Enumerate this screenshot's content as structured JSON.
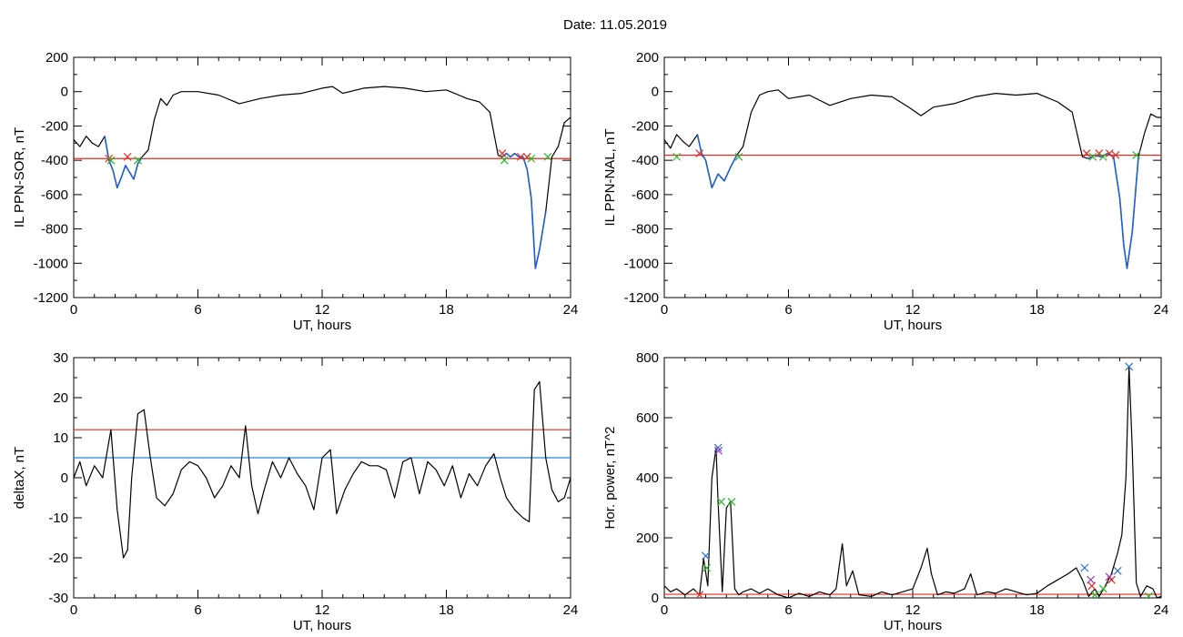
{
  "page": {
    "date_label": "Date:",
    "date_value": "11.05.2019"
  },
  "colors": {
    "background": "#ffffff",
    "axis": "#000000",
    "trace": "#000000",
    "substorm_segment": "#1f5fd0",
    "threshold_red": "#e8291c",
    "threshold_blue": "#1f8bd6",
    "marker_red": "#e8291c",
    "marker_green": "#22bb22",
    "marker_blue": "#2a6fd6",
    "marker_purple": "#9a3cc0"
  },
  "chart_data": [
    {
      "id": "sor",
      "type": "line",
      "title": "",
      "xlabel": "UT, hours",
      "ylabel": "IL PPN-SOR, nT",
      "xlim": [
        0,
        24
      ],
      "ylim": [
        -1200,
        200
      ],
      "xticks": [
        0,
        6,
        12,
        18,
        24
      ],
      "yticks": [
        200,
        0,
        -200,
        -400,
        -600,
        -800,
        -1000,
        -1200
      ],
      "grid": false,
      "hlines": [
        {
          "value": -390,
          "color": "red"
        }
      ],
      "series": [
        {
          "x": [
            0,
            0.3,
            0.6,
            0.9,
            1.2,
            1.5,
            1.7,
            1.9,
            2.1,
            2.3,
            2.5,
            2.7,
            2.9,
            3.1,
            3.3,
            3.6,
            3.9,
            4.2,
            4.5,
            4.8,
            5.2,
            6,
            7,
            8,
            9,
            10,
            11,
            12,
            12.5,
            13,
            14,
            15,
            16,
            17,
            18,
            19,
            19.6,
            20.1,
            20.5,
            20.7,
            20.9,
            21.1,
            21.3,
            21.5,
            21.7,
            21.9,
            22.1,
            22.3,
            22.5,
            22.8,
            23.1,
            23.4,
            23.7,
            24
          ],
          "y": [
            -280,
            -320,
            -260,
            -300,
            -320,
            -260,
            -400,
            -460,
            -560,
            -500,
            -430,
            -470,
            -510,
            -420,
            -380,
            -340,
            -160,
            -40,
            -80,
            -20,
            0,
            0,
            -20,
            -70,
            -40,
            -20,
            -10,
            20,
            30,
            -10,
            20,
            30,
            20,
            0,
            10,
            -40,
            -60,
            -120,
            -370,
            -380,
            -360,
            -380,
            -360,
            -380,
            -380,
            -450,
            -620,
            -1030,
            -920,
            -700,
            -380,
            -320,
            -180,
            -150
          ]
        }
      ],
      "highlighted_segments": [
        [
          1.5,
          3.3
        ],
        [
          20.6,
          23.0
        ]
      ],
      "markers": [
        {
          "x": 1.7,
          "y": -390,
          "color": "red"
        },
        {
          "x": 1.8,
          "y": -400,
          "color": "green"
        },
        {
          "x": 2.6,
          "y": -380,
          "color": "red"
        },
        {
          "x": 3.1,
          "y": -400,
          "color": "green"
        },
        {
          "x": 20.7,
          "y": -360,
          "color": "red"
        },
        {
          "x": 20.8,
          "y": -400,
          "color": "green"
        },
        {
          "x": 21.6,
          "y": -380,
          "color": "red"
        },
        {
          "x": 21.9,
          "y": -380,
          "color": "red"
        },
        {
          "x": 22.1,
          "y": -390,
          "color": "green"
        },
        {
          "x": 22.9,
          "y": -380,
          "color": "green"
        }
      ]
    },
    {
      "id": "nal",
      "type": "line",
      "title": "",
      "xlabel": "UT, hours",
      "ylabel": "IL PPN-NAL, nT",
      "xlim": [
        0,
        24
      ],
      "ylim": [
        -1200,
        200
      ],
      "xticks": [
        0,
        6,
        12,
        18,
        24
      ],
      "yticks": [
        200,
        0,
        -200,
        -400,
        -600,
        -800,
        -1000,
        -1200
      ],
      "grid": false,
      "hlines": [
        {
          "value": -370,
          "color": "red"
        }
      ],
      "series": [
        {
          "x": [
            0,
            0.3,
            0.6,
            0.9,
            1.2,
            1.6,
            1.8,
            2.0,
            2.3,
            2.6,
            2.9,
            3.2,
            3.5,
            3.8,
            4.2,
            4.6,
            5.0,
            5.5,
            6,
            7,
            8,
            9,
            10,
            11,
            11.8,
            12.4,
            13,
            14,
            15,
            16,
            17,
            18,
            19,
            19.7,
            20.2,
            20.5,
            20.8,
            21.1,
            21.4,
            21.7,
            22.0,
            22.2,
            22.35,
            22.6,
            22.9,
            23.2,
            23.5,
            23.8,
            24
          ],
          "y": [
            -280,
            -330,
            -250,
            -290,
            -320,
            -250,
            -360,
            -400,
            -560,
            -480,
            -520,
            -440,
            -370,
            -320,
            -120,
            -20,
            0,
            10,
            -40,
            -20,
            -80,
            -40,
            -20,
            -30,
            -90,
            -140,
            -90,
            -70,
            -30,
            -10,
            -20,
            -10,
            -60,
            -120,
            -380,
            -390,
            -370,
            -380,
            -360,
            -380,
            -620,
            -900,
            -1030,
            -820,
            -380,
            -240,
            -130,
            -150,
            -150
          ]
        }
      ],
      "highlighted_segments": [
        [
          1.6,
          3.7
        ],
        [
          20.4,
          22.9
        ]
      ],
      "markers": [
        {
          "x": 0.6,
          "y": -380,
          "color": "green"
        },
        {
          "x": 1.7,
          "y": -360,
          "color": "red"
        },
        {
          "x": 3.6,
          "y": -380,
          "color": "green"
        },
        {
          "x": 20.4,
          "y": -360,
          "color": "red"
        },
        {
          "x": 20.7,
          "y": -380,
          "color": "green"
        },
        {
          "x": 21.0,
          "y": -360,
          "color": "red"
        },
        {
          "x": 21.2,
          "y": -380,
          "color": "green"
        },
        {
          "x": 21.5,
          "y": -360,
          "color": "red"
        },
        {
          "x": 21.8,
          "y": -370,
          "color": "red"
        },
        {
          "x": 22.8,
          "y": -370,
          "color": "green"
        }
      ]
    },
    {
      "id": "deltax",
      "type": "line",
      "title": "",
      "xlabel": "UT, hours",
      "ylabel": "deltaX, nT",
      "xlim": [
        0,
        24
      ],
      "ylim": [
        -30,
        30
      ],
      "xticks": [
        0,
        6,
        12,
        18,
        24
      ],
      "yticks": [
        30,
        20,
        10,
        0,
        -10,
        -20,
        -30
      ],
      "grid": false,
      "hlines": [
        {
          "value": 12,
          "color": "red"
        },
        {
          "value": 5,
          "color": "blue"
        }
      ],
      "series": [
        {
          "x": [
            0,
            0.3,
            0.6,
            1.0,
            1.4,
            1.8,
            2.1,
            2.4,
            2.6,
            2.8,
            3.1,
            3.4,
            3.7,
            4.0,
            4.4,
            4.8,
            5.2,
            5.6,
            6.0,
            6.4,
            6.8,
            7.2,
            7.6,
            8.0,
            8.3,
            8.6,
            8.9,
            9.2,
            9.6,
            10.0,
            10.4,
            10.8,
            11.2,
            11.6,
            12.0,
            12.4,
            12.7,
            13.1,
            13.5,
            13.9,
            14.3,
            14.7,
            15.1,
            15.5,
            15.9,
            16.3,
            16.7,
            17.1,
            17.5,
            17.9,
            18.3,
            18.7,
            19.1,
            19.5,
            19.9,
            20.3,
            20.6,
            20.9,
            21.3,
            21.7,
            22.0,
            22.25,
            22.5,
            22.8,
            23.1,
            23.4,
            23.7,
            24
          ],
          "y": [
            0,
            4,
            -2,
            3,
            0,
            12,
            -8,
            -20,
            -18,
            0,
            16,
            17,
            5,
            -5,
            -7,
            -4,
            2,
            4,
            3,
            0,
            -5,
            -2,
            3,
            0,
            13,
            -2,
            -9,
            -3,
            4,
            0,
            5,
            1,
            -2,
            -8,
            5,
            7,
            -9,
            -3,
            1,
            4,
            3,
            3,
            2,
            -5,
            4,
            5,
            -4,
            4,
            2,
            -2,
            3,
            -5,
            1,
            -2,
            3,
            6,
            0,
            -5,
            -8,
            -10,
            -11,
            22,
            24,
            5,
            -3,
            -6,
            -5,
            0
          ]
        }
      ],
      "highlighted_segments": [],
      "markers": []
    },
    {
      "id": "power",
      "type": "line",
      "title": "",
      "xlabel": "UT, hours",
      "ylabel": "Hor. power, nT^2",
      "xlim": [
        0,
        24
      ],
      "ylim": [
        0,
        800
      ],
      "xticks": [
        0,
        6,
        12,
        18,
        24
      ],
      "yticks": [
        800,
        600,
        400,
        200,
        0
      ],
      "grid": false,
      "hlines": [
        {
          "value": 12,
          "color": "red"
        }
      ],
      "series": [
        {
          "x": [
            0,
            0.3,
            0.6,
            1.0,
            1.4,
            1.7,
            1.9,
            2.1,
            2.3,
            2.5,
            2.6,
            2.8,
            3.0,
            3.2,
            3.4,
            3.6,
            3.8,
            4.2,
            4.6,
            5.0,
            5.5,
            6.0,
            6.5,
            7.0,
            7.5,
            8.0,
            8.3,
            8.6,
            8.8,
            9.1,
            9.4,
            10.0,
            10.5,
            11.0,
            11.5,
            12.0,
            12.4,
            12.7,
            12.9,
            13.2,
            13.6,
            14.0,
            14.5,
            14.8,
            15.1,
            15.6,
            16.0,
            16.5,
            17.0,
            17.5,
            18.0,
            18.5,
            19.0,
            19.5,
            19.9,
            20.2,
            20.5,
            20.8,
            21.0,
            21.3,
            21.6,
            21.9,
            22.1,
            22.3,
            22.45,
            22.6,
            22.8,
            23.0,
            23.3,
            23.6,
            23.8,
            24
          ],
          "y": [
            40,
            20,
            30,
            10,
            30,
            10,
            130,
            40,
            400,
            500,
            320,
            20,
            300,
            320,
            30,
            10,
            20,
            30,
            15,
            30,
            10,
            0,
            15,
            5,
            20,
            10,
            30,
            180,
            40,
            90,
            10,
            5,
            20,
            10,
            20,
            30,
            100,
            165,
            80,
            10,
            20,
            15,
            30,
            80,
            10,
            20,
            15,
            30,
            20,
            10,
            15,
            40,
            60,
            80,
            100,
            60,
            5,
            30,
            5,
            40,
            80,
            150,
            210,
            400,
            770,
            500,
            50,
            5,
            40,
            30,
            0,
            5
          ]
        }
      ],
      "highlighted_segments": [],
      "markers": [
        {
          "x": 1.7,
          "y": 10,
          "color": "red"
        },
        {
          "x": 2.0,
          "y": 140,
          "color": "blue"
        },
        {
          "x": 2.05,
          "y": 100,
          "color": "green"
        },
        {
          "x": 2.6,
          "y": 500,
          "color": "blue"
        },
        {
          "x": 2.62,
          "y": 490,
          "color": "purple"
        },
        {
          "x": 2.75,
          "y": 320,
          "color": "green"
        },
        {
          "x": 3.25,
          "y": 320,
          "color": "green"
        },
        {
          "x": 20.3,
          "y": 100,
          "color": "blue"
        },
        {
          "x": 20.6,
          "y": 60,
          "color": "purple"
        },
        {
          "x": 20.65,
          "y": 40,
          "color": "red"
        },
        {
          "x": 20.8,
          "y": 10,
          "color": "green"
        },
        {
          "x": 21.2,
          "y": 30,
          "color": "green"
        },
        {
          "x": 21.5,
          "y": 70,
          "color": "purple"
        },
        {
          "x": 21.6,
          "y": 60,
          "color": "red"
        },
        {
          "x": 21.9,
          "y": 90,
          "color": "blue"
        },
        {
          "x": 22.45,
          "y": 770,
          "color": "blue"
        },
        {
          "x": 23.4,
          "y": 5,
          "color": "green"
        }
      ]
    }
  ]
}
